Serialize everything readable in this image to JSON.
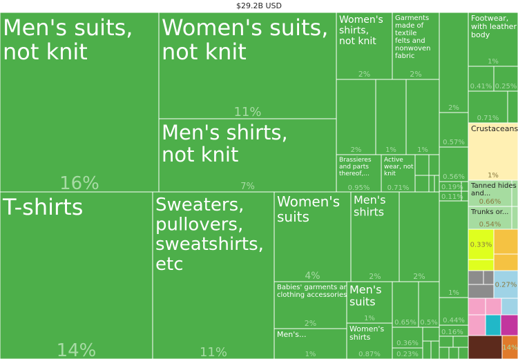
{
  "chart_data": {
    "type": "treemap",
    "title": "$29.2B USD",
    "colors": {
      "textiles": "#4daf4a",
      "animal": "#fff0b3",
      "hides": "#a6dca0",
      "machinery": "#dfff1f",
      "food": "#f5c242",
      "transport": "#9fd3e6",
      "minerals": "#8c8c8c",
      "chemicals": "#f5a3c7",
      "electronics": "#21b8c8",
      "metals": "#c2359e",
      "misc": "#5c2a1c",
      "plastics": "#d9534f",
      "wood": "#e07a2b",
      "stroke": "#ffffff",
      "pct_text": "#a8dba5",
      "pct_text_light": "#8fbf8f",
      "label_dark": "#222222"
    },
    "items": [
      {
        "label": "Men's suits, not knit",
        "value": "16%"
      },
      {
        "label": "Women's suits, not knit",
        "value": "11%"
      },
      {
        "label": "Men's shirts, not knit",
        "value": "7%"
      },
      {
        "label": "Women's shirts, not knit",
        "value": "2%"
      },
      {
        "label": "Garments made of textile felts and nonwoven fabric",
        "value": "2%"
      },
      {
        "label": "",
        "value": "2%"
      },
      {
        "label": "",
        "value": "1%"
      },
      {
        "label": "",
        "value": "1%"
      },
      {
        "label": "Brassieres and parts thereof,...",
        "value": "0.95%"
      },
      {
        "label": "Active wear, not knit",
        "value": "0.71%"
      },
      {
        "label": "",
        "value": "2%"
      },
      {
        "label": "",
        "value": "0.57%"
      },
      {
        "label": "",
        "value": "0.56%"
      },
      {
        "label": "",
        "value": "0.19%"
      },
      {
        "label": "",
        "value": "0.11%"
      },
      {
        "label": "Footwear, with leather body",
        "value": "1%"
      },
      {
        "label": "",
        "value": "0.41%"
      },
      {
        "label": "",
        "value": "0.25%"
      },
      {
        "label": "",
        "value": "0.71%"
      },
      {
        "label": "Crustaceans",
        "value": "1%"
      },
      {
        "label": "Tanned hides and...",
        "value": "0.66%"
      },
      {
        "label": "Trunks or...",
        "value": "0.54%"
      },
      {
        "label": "T-shirts",
        "value": "14%"
      },
      {
        "label": "Sweaters, pullovers, sweatshirts, etc",
        "value": "11%"
      },
      {
        "label": "Women's suits",
        "value": "4%"
      },
      {
        "label": "Men's shirts",
        "value": "2%"
      },
      {
        "label": "",
        "value": "2%"
      },
      {
        "label": "Babies' garments and clothing accessories",
        "value": "2%"
      },
      {
        "label": "Men's suits",
        "value": "1%"
      },
      {
        "label": "",
        "value": "0.65%"
      },
      {
        "label": "",
        "value": "0.5%"
      },
      {
        "label": "Men's...",
        "value": "1%"
      },
      {
        "label": "Women's shirts",
        "value": "0.87%"
      },
      {
        "label": "",
        "value": "0.36%"
      },
      {
        "label": "",
        "value": "0.23%"
      },
      {
        "label": "",
        "value": "1%"
      },
      {
        "label": "",
        "value": "0.44%"
      },
      {
        "label": "",
        "value": "0.16%"
      },
      {
        "label": "",
        "value": "0.33%"
      },
      {
        "label": "",
        "value": "0.27%"
      },
      {
        "label": "",
        "value": "14%"
      }
    ]
  }
}
